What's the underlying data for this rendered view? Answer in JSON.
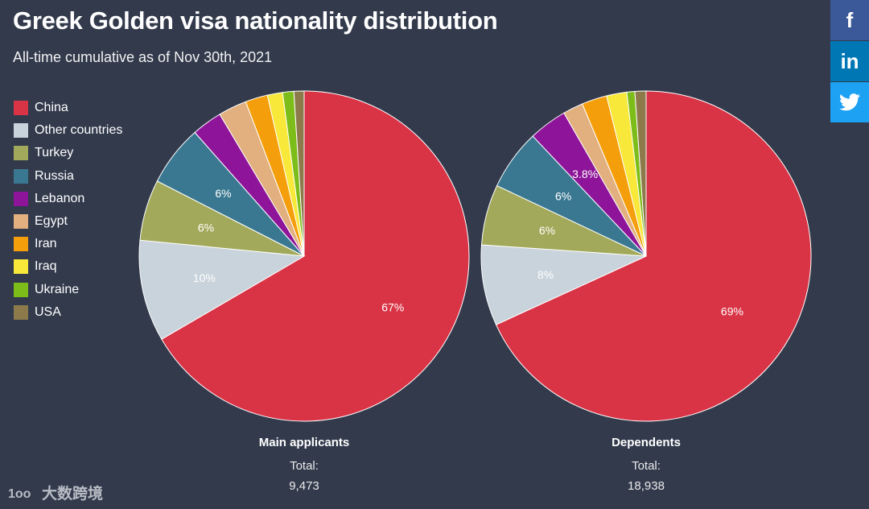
{
  "header": {
    "title": "Greek Golden visa nationality distribution",
    "subtitle": "All-time cumulative as of Nov 30th, 2021"
  },
  "legend": [
    {
      "label": "China",
      "color": "#d93446"
    },
    {
      "label": "Other countries",
      "color": "#c9d3db"
    },
    {
      "label": "Turkey",
      "color": "#a3a95a"
    },
    {
      "label": "Russia",
      "color": "#3a7891"
    },
    {
      "label": "Lebanon",
      "color": "#8e1599"
    },
    {
      "label": "Egypt",
      "color": "#e1b07e"
    },
    {
      "label": "Iran",
      "color": "#f59e0b"
    },
    {
      "label": "Iraq",
      "color": "#f8e83a"
    },
    {
      "label": "Ukraine",
      "color": "#7dbd1a"
    },
    {
      "label": "USA",
      "color": "#8c7a4b"
    }
  ],
  "social": {
    "facebook": "f",
    "linkedin": "in",
    "twitter": "twitter-icon"
  },
  "watermark": "大数跨境",
  "chart_data": [
    {
      "type": "pie",
      "name": "Main applicants",
      "total_label": "Total:",
      "total": "9,473",
      "categories": [
        "China",
        "Other countries",
        "Turkey",
        "Russia",
        "Lebanon",
        "Egypt",
        "Iran",
        "Iraq",
        "Ukraine",
        "USA"
      ],
      "values": [
        67,
        10,
        6,
        6,
        3,
        2.8,
        2.2,
        1.5,
        1.1,
        1.0
      ],
      "data_labels": [
        "67%",
        "10%",
        "6%",
        "6%",
        "",
        "",
        "",
        "",
        "",
        ""
      ]
    },
    {
      "type": "pie",
      "name": "Dependents",
      "total_label": "Total:",
      "total": "18,938",
      "categories": [
        "China",
        "Other countries",
        "Turkey",
        "Russia",
        "Lebanon",
        "Egypt",
        "Iran",
        "Iraq",
        "Ukraine",
        "USA"
      ],
      "values": [
        69,
        8,
        6,
        6,
        3.8,
        2.0,
        2.5,
        2.0,
        0.8,
        1.1
      ],
      "data_labels": [
        "69%",
        "8%",
        "6%",
        "6%",
        "3.8%",
        "",
        "",
        "",
        "",
        ""
      ]
    }
  ]
}
